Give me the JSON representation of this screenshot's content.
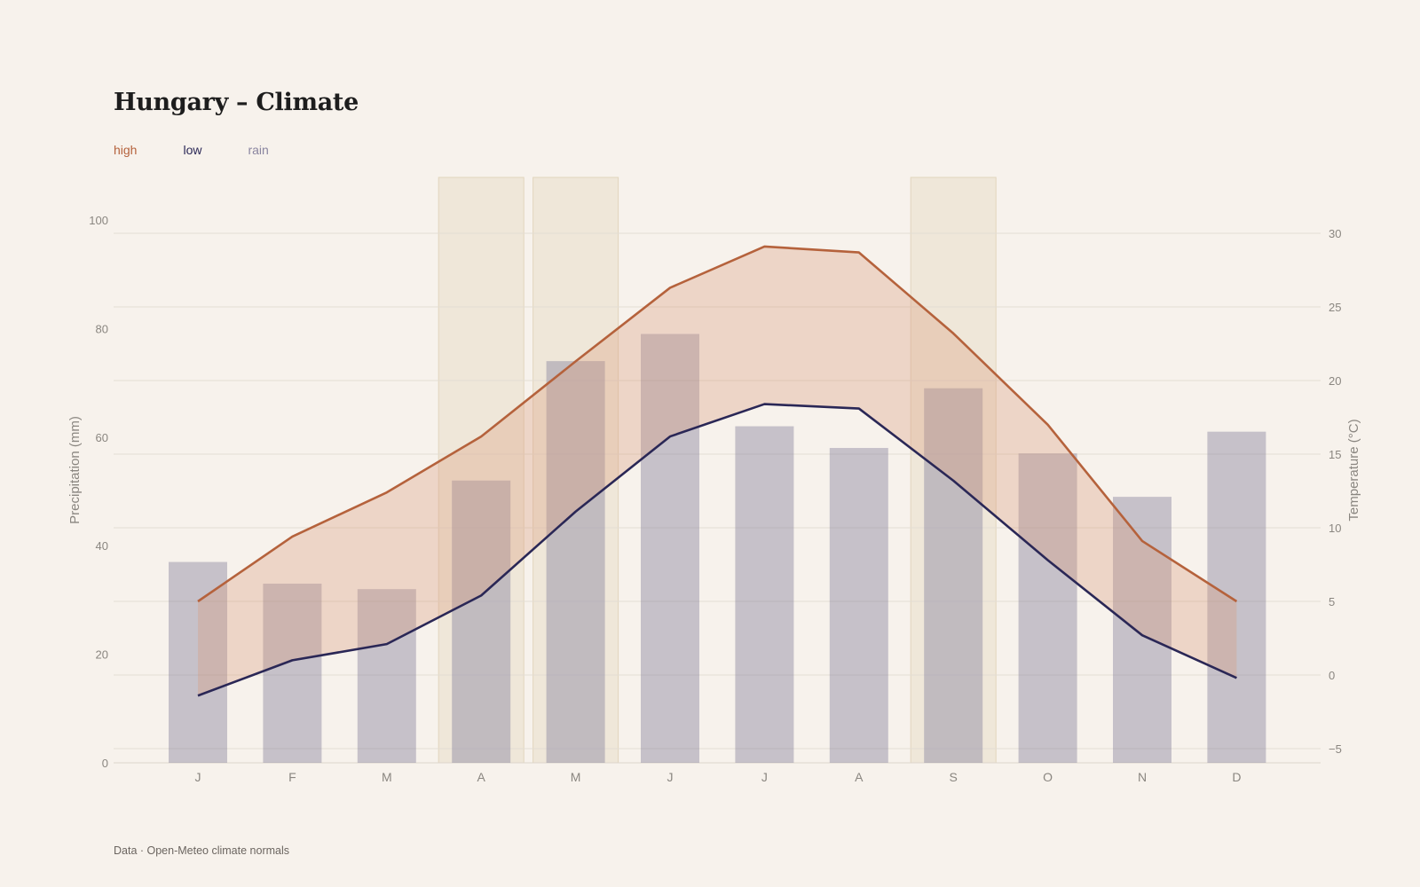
{
  "title": "Hungary – Climate",
  "footer": "Data · Open-Meteo climate normals",
  "legend": [
    {
      "label": "high",
      "color": "#b5623c"
    },
    {
      "label": "low",
      "color": "#2a2756"
    },
    {
      "label": "rain",
      "color": "#8a85a0"
    }
  ],
  "chart_data": {
    "type": "bar",
    "categories": [
      "J",
      "F",
      "M",
      "A",
      "M",
      "J",
      "J",
      "A",
      "S",
      "O",
      "N",
      "D"
    ],
    "highlighted_months": [
      3,
      4,
      8
    ],
    "series": [
      {
        "name": "rain",
        "type": "bar",
        "axis": "left",
        "color": "#8a85a0",
        "values": [
          37,
          33,
          32,
          52,
          74,
          79,
          62,
          58,
          69,
          57,
          49,
          61
        ]
      },
      {
        "name": "high",
        "type": "line",
        "axis": "right",
        "color": "#b5623c",
        "values": [
          5.0,
          9.4,
          12.4,
          16.2,
          21.3,
          26.3,
          29.1,
          28.7,
          23.2,
          17.0,
          9.1,
          5.0
        ]
      },
      {
        "name": "low",
        "type": "line",
        "axis": "right",
        "color": "#2a2756",
        "values": [
          -1.4,
          1.0,
          2.1,
          5.4,
          11.1,
          16.2,
          18.4,
          18.1,
          13.2,
          7.8,
          2.7,
          -0.2
        ]
      }
    ],
    "y_left": {
      "label": "Precipitation (mm)",
      "ticks": [
        0,
        20,
        40,
        60,
        80,
        100
      ],
      "range": [
        0,
        100
      ]
    },
    "y_right": {
      "label": "Temperature (°C)",
      "ticks": [
        -5,
        0,
        5,
        10,
        15,
        20,
        25,
        30
      ],
      "range": [
        -5,
        30
      ]
    },
    "grid": true
  }
}
